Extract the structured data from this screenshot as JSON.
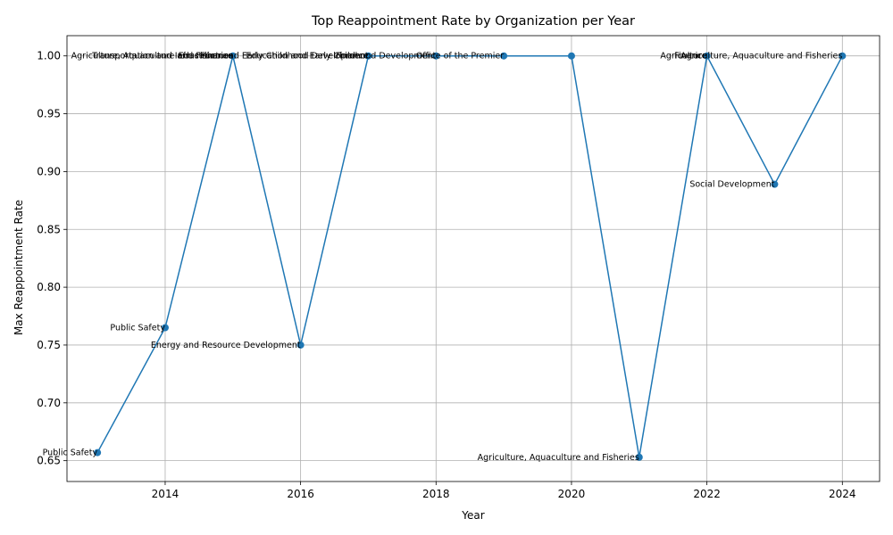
{
  "chart_data": {
    "type": "line",
    "title": "Top Reappointment Rate by Organization per Year",
    "xlabel": "Year",
    "ylabel": "Max Reappointment Rate",
    "xlim": [
      2012.55,
      2024.55
    ],
    "ylim": [
      0.632,
      1.0175
    ],
    "xticks": [
      2014,
      2016,
      2018,
      2020,
      2022,
      2024
    ],
    "yticks": [
      0.65,
      0.7,
      0.75,
      0.8,
      0.85,
      0.9,
      0.95,
      1.0
    ],
    "grid": true,
    "line_color": "#1f77b4",
    "points": [
      {
        "x": 2013,
        "y": 0.657,
        "label": "Public Safety"
      },
      {
        "x": 2014,
        "y": 0.765,
        "label": "Public Safety"
      },
      {
        "x": 2015,
        "y": 1.0,
        "label": "Agriculture, Aquaculture and Fisheries"
      },
      {
        "x": 2016,
        "y": 0.75,
        "label": "Energy and Resource Development"
      },
      {
        "x": 2017,
        "y": 1.0,
        "label": "Education and Early Childhood Development"
      },
      {
        "x": 2018,
        "y": 1.0,
        "label": "Education and Early Childhood Development"
      },
      {
        "x": 2019,
        "y": 1.0,
        "label": "Office of the Premier"
      },
      {
        "x": 2020,
        "y": 1.0,
        "label": ""
      },
      {
        "x": 2021,
        "y": 0.653,
        "label": "Agriculture, Aquaculture and Fisheries"
      },
      {
        "x": 2022,
        "y": 1.0,
        "label": "Agriculture"
      },
      {
        "x": 2023,
        "y": 0.889,
        "label": "Social Development"
      },
      {
        "x": 2024,
        "y": 1.0,
        "label": "Agriculture, Aquaculture and Fisheries"
      }
    ],
    "extra_labels": [
      {
        "x": 2015,
        "y": 1.0,
        "label": "Finance"
      },
      {
        "x": 2015,
        "y": 1.0,
        "label": "Transportation and Infrastructure"
      },
      {
        "x": 2017,
        "y": 1.0,
        "label": "Finance"
      },
      {
        "x": 2022,
        "y": 1.0,
        "label": "Finance"
      }
    ]
  }
}
